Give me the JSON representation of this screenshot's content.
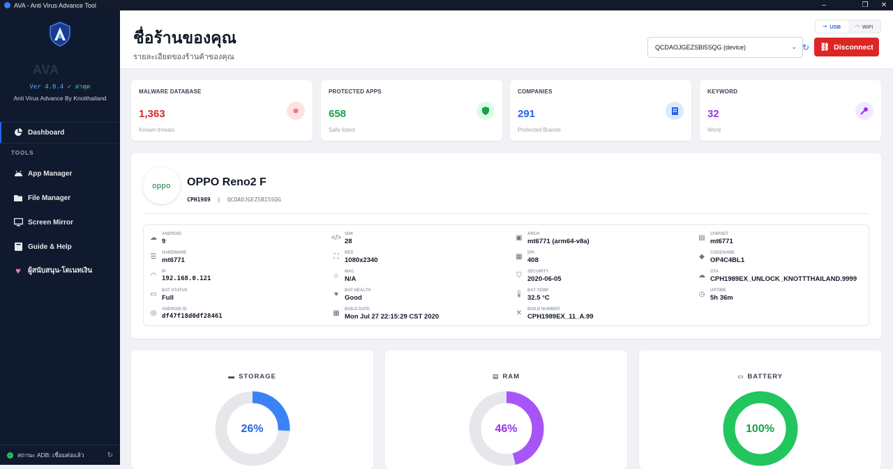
{
  "window": {
    "title": "AVA - Anti Virus Advance Tool"
  },
  "sidebar": {
    "app_name": "AVA",
    "version": "Ver 4.0.4",
    "version_status": "✓ ล่าสุด",
    "subtitle": "Anti Virus Advance By Knotthailand",
    "dashboard_label": "Dashboard",
    "tools_label": "TOOLS",
    "items": [
      {
        "label": "App Manager",
        "icon": "android-icon"
      },
      {
        "label": "File Manager",
        "icon": "folder-icon"
      },
      {
        "label": "Screen Mirror",
        "icon": "monitor-icon"
      },
      {
        "label": "Guide & Help",
        "icon": "book-icon"
      },
      {
        "label": "ผู้สนับสนุน-โดเนทเงิน",
        "icon": "heart-icon"
      }
    ],
    "adb_status": "สถานะ ADB: เชื่อมต่อแล้ว"
  },
  "header": {
    "title": "ชื่อร้านของคุณ",
    "subtitle": "รายละเอียดของร้านค้าของคุณ",
    "usb_label": "USB",
    "wifi_label": "WiFi",
    "device_selected": "QCDAOJGEZSBI5SQG (device)",
    "disconnect_label": "Disconnect"
  },
  "stats": [
    {
      "label": "MALWARE DATABASE",
      "value": "1,363",
      "desc": "Known threats",
      "color": "#dc2626",
      "icon": "virus-icon"
    },
    {
      "label": "PROTECTED APPS",
      "value": "658",
      "desc": "Safe listed",
      "color": "#16a34a",
      "icon": "shield-icon"
    },
    {
      "label": "COMPANIES",
      "value": "291",
      "desc": "Protected Brands",
      "color": "#2563eb",
      "icon": "building-icon"
    },
    {
      "label": "KEYWORD",
      "value": "32",
      "desc": "Word",
      "color": "#9333ea",
      "icon": "key-icon"
    }
  ],
  "device": {
    "brand_logo": "oppo",
    "name": "OPPO Reno2 F",
    "model": "CPH1989",
    "serial": "QCDAOJGEZSBI5SQG",
    "specs": [
      {
        "label": "ANDROID",
        "value": "9"
      },
      {
        "label": "SDK",
        "value": "28"
      },
      {
        "label": "ARCH",
        "value": "mt6771 (arm64-v8a)"
      },
      {
        "label": "CHIPSET",
        "value": "mt6771"
      },
      {
        "label": "HARDWARE",
        "value": "mt6771"
      },
      {
        "label": "RES",
        "value": "1080x2340"
      },
      {
        "label": "DPI",
        "value": "408"
      },
      {
        "label": "CODENAME",
        "value": "OP4C4BL1"
      },
      {
        "label": "IP",
        "value": "192.168.0.121"
      },
      {
        "label": "MAC",
        "value": "N/A"
      },
      {
        "label": "SECURITY",
        "value": "2020-06-05"
      },
      {
        "label": "OTA",
        "value": "CPH1989EX_UNLOCK_KNOTTTHAILAND.9999"
      },
      {
        "label": "BAT STATUS",
        "value": "Full"
      },
      {
        "label": "BAT HEALTH",
        "value": "Good"
      },
      {
        "label": "BAT TEMP",
        "value": "32.5 °C"
      },
      {
        "label": "UPTIME",
        "value": "5h 36m"
      },
      {
        "label": "ANDROID ID",
        "value": "df47f18d0df28461"
      },
      {
        "label": "BUILD DATE",
        "value": "Mon Jul 27 22:15:29 CST 2020"
      },
      {
        "label": "BUILD NUMBER",
        "value": "CPH1989EX_11_A.99"
      }
    ]
  },
  "gauges": [
    {
      "title": "STORAGE",
      "value": "26%",
      "percent": 26,
      "color": "#3b82f6",
      "icon": "storage-icon"
    },
    {
      "title": "RAM",
      "value": "46%",
      "percent": 46,
      "color": "#a855f7",
      "icon": "memory-icon"
    },
    {
      "title": "BATTERY",
      "value": "100%",
      "percent": 100,
      "color": "#22c55e",
      "icon": "battery-icon"
    }
  ]
}
